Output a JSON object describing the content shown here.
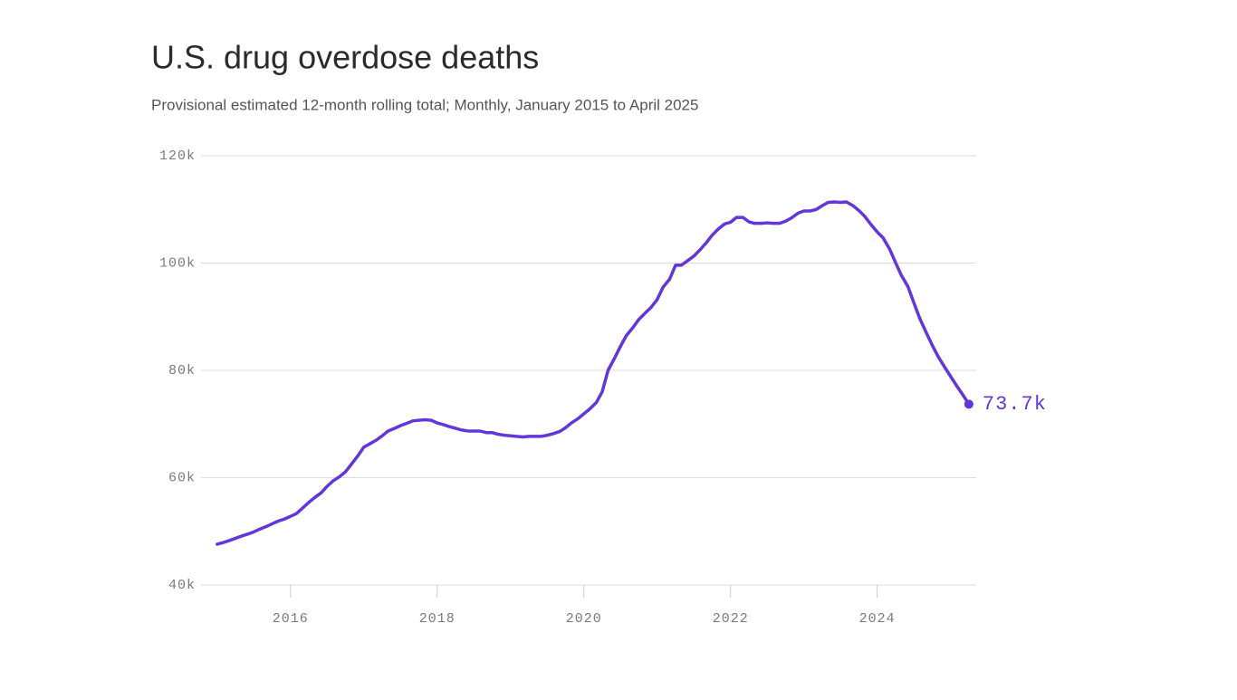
{
  "chart_data": {
    "type": "line",
    "title": "U.S. drug overdose deaths",
    "subtitle": "Provisional estimated 12-month rolling total; Monthly, January 2015 to April 2025",
    "x": [
      2015.0,
      2015.08,
      2015.17,
      2015.25,
      2015.33,
      2015.42,
      2015.5,
      2015.58,
      2015.67,
      2015.75,
      2015.83,
      2015.92,
      2016.0,
      2016.08,
      2016.17,
      2016.25,
      2016.33,
      2016.42,
      2016.5,
      2016.58,
      2016.67,
      2016.75,
      2016.83,
      2016.92,
      2017.0,
      2017.08,
      2017.17,
      2017.25,
      2017.33,
      2017.42,
      2017.5,
      2017.58,
      2017.67,
      2017.75,
      2017.83,
      2017.92,
      2018.0,
      2018.08,
      2018.17,
      2018.25,
      2018.33,
      2018.42,
      2018.5,
      2018.58,
      2018.67,
      2018.75,
      2018.83,
      2018.92,
      2019.0,
      2019.08,
      2019.17,
      2019.25,
      2019.33,
      2019.42,
      2019.5,
      2019.58,
      2019.67,
      2019.75,
      2019.83,
      2019.92,
      2020.0,
      2020.08,
      2020.17,
      2020.25,
      2020.33,
      2020.42,
      2020.5,
      2020.58,
      2020.67,
      2020.75,
      2020.83,
      2020.92,
      2021.0,
      2021.08,
      2021.17,
      2021.25,
      2021.33,
      2021.42,
      2021.5,
      2021.58,
      2021.67,
      2021.75,
      2021.83,
      2021.92,
      2022.0,
      2022.08,
      2022.17,
      2022.25,
      2022.33,
      2022.42,
      2022.5,
      2022.58,
      2022.67,
      2022.75,
      2022.83,
      2022.92,
      2023.0,
      2023.08,
      2023.17,
      2023.25,
      2023.33,
      2023.42,
      2023.5,
      2023.58,
      2023.67,
      2023.75,
      2023.83,
      2023.92,
      2024.0,
      2024.08,
      2024.17,
      2024.25,
      2024.33,
      2024.42,
      2024.5,
      2024.58,
      2024.67,
      2024.75,
      2024.83,
      2024.92,
      2025.0,
      2025.08,
      2025.17,
      2025.25
    ],
    "series": [
      {
        "color": "#6236d8",
        "values": [
          47600,
          47900,
          48300,
          48700,
          49100,
          49500,
          49900,
          50400,
          50900,
          51400,
          51900,
          52300,
          52800,
          53300,
          54400,
          55400,
          56300,
          57200,
          58400,
          59400,
          60200,
          61100,
          62500,
          64100,
          65700,
          66300,
          67000,
          67800,
          68700,
          69200,
          69700,
          70100,
          70600,
          70700,
          70800,
          70700,
          70200,
          69900,
          69500,
          69200,
          68900,
          68700,
          68700,
          68700,
          68400,
          68400,
          68100,
          67900,
          67800,
          67700,
          67600,
          67700,
          67700,
          67700,
          67900,
          68200,
          68600,
          69300,
          70200,
          71000,
          71900,
          72800,
          74000,
          76000,
          80000,
          82300,
          84500,
          86500,
          88000,
          89500,
          90600,
          91800,
          93200,
          95500,
          97000,
          99600,
          99600,
          100500,
          101300,
          102400,
          103800,
          105200,
          106300,
          107300,
          107600,
          108500,
          108500,
          107700,
          107400,
          107400,
          107500,
          107400,
          107400,
          107800,
          108400,
          109300,
          109700,
          109700,
          110000,
          110700,
          111300,
          111400,
          111300,
          111400,
          110700,
          109800,
          108700,
          107100,
          105800,
          104700,
          102600,
          100100,
          97700,
          95600,
          92600,
          89700,
          87000,
          84700,
          82600,
          80600,
          78900,
          77200,
          75400,
          73700
        ],
        "value_labels": [
          null,
          null,
          null,
          null,
          null,
          null,
          null,
          null,
          null,
          null,
          null,
          null,
          null,
          null,
          null,
          null,
          null,
          null,
          null,
          null,
          null,
          null,
          null,
          null,
          null,
          null,
          null,
          null,
          null,
          null,
          null,
          null,
          null,
          null,
          null,
          null,
          null,
          null,
          null,
          null,
          null,
          null,
          null,
          null,
          null,
          null,
          null,
          null,
          null,
          null,
          null,
          null,
          null,
          null,
          null,
          null,
          null,
          null,
          null,
          null,
          null,
          null,
          null,
          null,
          null,
          null,
          null,
          null,
          null,
          null,
          null,
          null,
          null,
          null,
          null,
          null,
          null,
          null,
          null,
          null,
          null,
          null,
          null,
          null,
          null,
          null,
          null,
          null,
          null,
          null,
          null,
          null,
          null,
          null,
          null,
          null,
          null,
          null,
          null,
          null,
          null,
          null,
          null,
          null,
          null,
          null,
          null,
          null,
          null,
          null,
          null,
          null,
          null,
          null,
          null,
          null,
          null,
          null,
          null,
          null,
          null,
          null,
          null,
          "73.7k"
        ]
      }
    ],
    "xlim": [
      2014.78,
      2025.35
    ],
    "xticks": [
      2016,
      2018,
      2020,
      2022,
      2024
    ],
    "ylim": [
      40000,
      120000
    ],
    "yticks": [
      {
        "value": 40000,
        "label": "40k"
      },
      {
        "value": 60000,
        "label": "60k"
      },
      {
        "value": 80000,
        "label": "80k"
      },
      {
        "value": 100000,
        "label": "100k"
      },
      {
        "value": 120000,
        "label": "120k"
      }
    ],
    "grid": true
  }
}
